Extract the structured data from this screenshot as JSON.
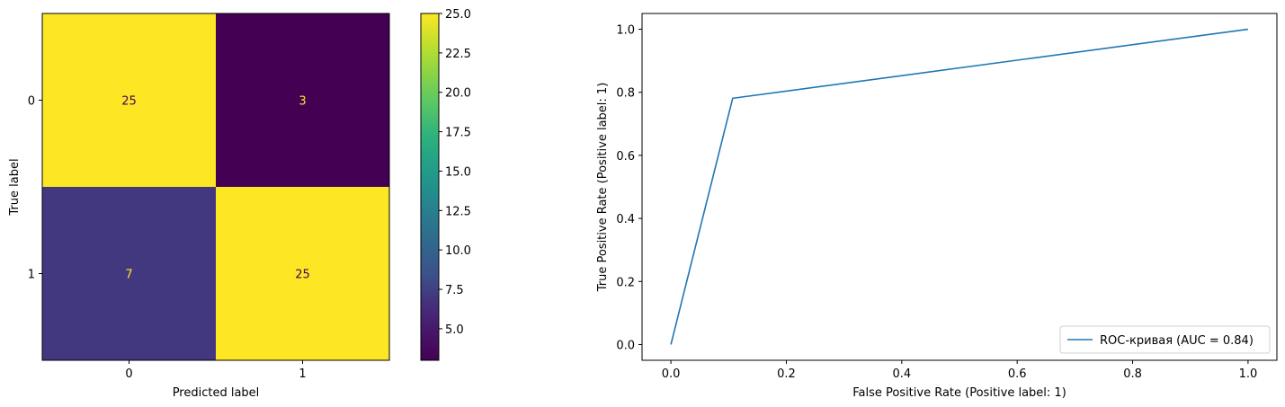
{
  "chart_data": [
    {
      "type": "heatmap",
      "x_categories": [
        "0",
        "1"
      ],
      "y_categories": [
        "0",
        "1"
      ],
      "values": [
        [
          25,
          3
        ],
        [
          7,
          25
        ]
      ],
      "xlabel": "Predicted label",
      "ylabel": "True label",
      "colormap": "viridis",
      "colorbar": {
        "range": [
          3,
          25
        ],
        "ticks": [
          5.0,
          7.5,
          10.0,
          12.5,
          15.0,
          17.5,
          20.0,
          22.5,
          25.0
        ],
        "tick_labels": [
          "5.0",
          "7.5",
          "10.0",
          "12.5",
          "15.0",
          "17.5",
          "20.0",
          "22.5",
          "25.0"
        ]
      },
      "cell_text_colors": {
        "dark": "#fde725",
        "light": "#440154"
      }
    },
    {
      "type": "line",
      "series": [
        {
          "name": "ROC-кривая (AUC = 0.84)",
          "x": [
            0.0,
            0.107,
            1.0
          ],
          "y": [
            0.0,
            0.781,
            1.0
          ],
          "color": "#1f77b4"
        }
      ],
      "xlabel": "False Positive Rate (Positive label: 1)",
      "ylabel": "True Positive Rate (Positive label: 1)",
      "xlim": [
        -0.05,
        1.05
      ],
      "ylim": [
        -0.05,
        1.05
      ],
      "xticks": [
        0.0,
        0.2,
        0.4,
        0.6,
        0.8,
        1.0
      ],
      "xtick_labels": [
        "0.0",
        "0.2",
        "0.4",
        "0.6",
        "0.8",
        "1.0"
      ],
      "yticks": [
        0.0,
        0.2,
        0.4,
        0.6,
        0.8,
        1.0
      ],
      "ytick_labels": [
        "0.0",
        "0.2",
        "0.4",
        "0.6",
        "0.8",
        "1.0"
      ],
      "grid": false,
      "legend": "lower-right"
    }
  ]
}
